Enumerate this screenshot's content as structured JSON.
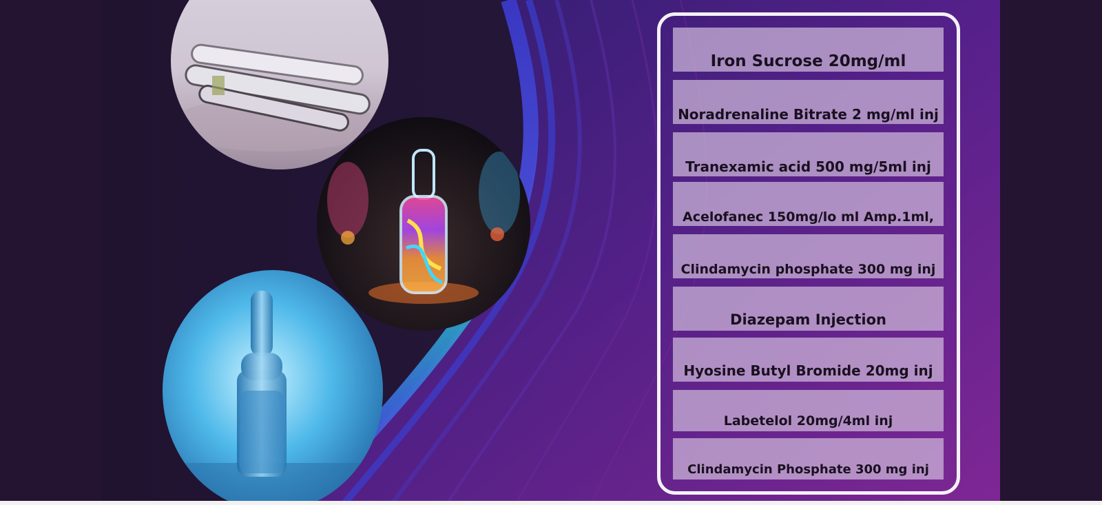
{
  "colors": {
    "background": "#241331",
    "panel_border": "#f4f1f6",
    "item_fill": "#ceb9da",
    "item_text": "#1a1020",
    "wave_blue": "#4a3fd6",
    "wave_teal": "#27c3c9",
    "wave_purple": "#8b2aa8"
  },
  "photos": [
    {
      "name": "clear-glass-ampoules"
    },
    {
      "name": "glowing-ampoule-vial"
    },
    {
      "name": "blue-glass-ampoule"
    }
  ],
  "products": [
    "Iron Sucrose 20mg/ml",
    "Noradrenaline Bitrate 2 mg/ml inj",
    "Tranexamic acid 500 mg/5ml inj",
    "Acelofanec 150mg/lo ml Amp.1ml,",
    "Clindamycin phosphate 300 mg inj",
    "Diazepam Injection",
    "Hyosine Butyl Bromide 20mg inj",
    "Labetelol 20mg/4ml inj",
    "Clindamycin Phosphate 300 mg inj"
  ]
}
